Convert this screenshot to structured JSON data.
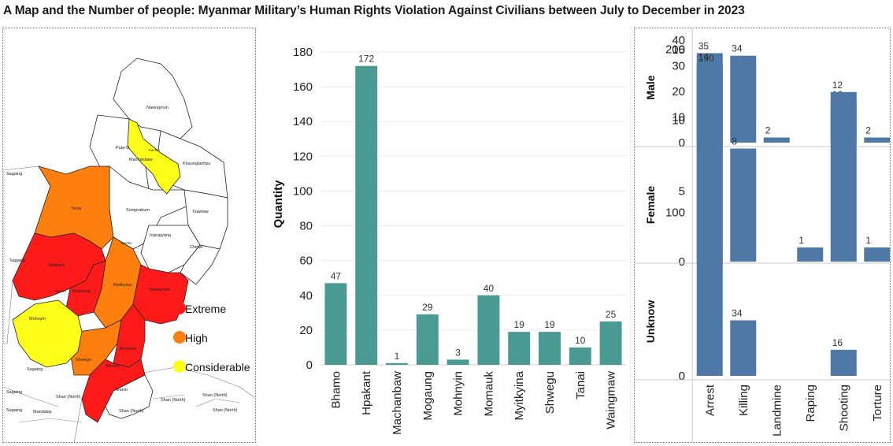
{
  "title": "A Map and the Number of people: Myanmar Military’s Human Rights Violation Against Civilians between July to December in 2023",
  "map": {
    "legend": [
      {
        "label": "Extreme",
        "color": "#ff1a1a"
      },
      {
        "label": "High",
        "color": "#ff7f0e"
      },
      {
        "label": "Considerable",
        "color": "#ffff1a"
      }
    ],
    "labels": {
      "nawngmun": "Nawngmun",
      "putao": "Puta-O",
      "kachin1": "Kachin",
      "machanbaw": "Machanbaw",
      "khaunglanhpu": "Khaunglanhpu",
      "sagaing1": "Sagaing",
      "tanai": "Tanai",
      "sumprabum": "Sumprabum",
      "tsawlaw": "Tsawlaw",
      "injangyang": "Injangyang",
      "kachin2": "Kachin",
      "chipwi": "Chipwi",
      "sagaing2": "Sagaing",
      "hpakant": "Hpakant",
      "myitkyina": "Myitkyina",
      "waingmaw": "Waingmaw",
      "kachin3": "Kachin",
      "mogaung": "Mogaung",
      "mohnyin": "Mohnyin",
      "momauk": "Momauk",
      "shwegu": "Shwegu",
      "bhamo": "Bhamo",
      "sagaing3": "Sagaing",
      "mansi": "Mansi",
      "sagaing4": "Sagaing",
      "shannorth1": "Shan (North)",
      "shannorth2": "Shan (North)",
      "sagaing5": "Sagaing",
      "mandalay": "Mandalay",
      "shannorth3": "Shan (North)",
      "shannorth4": "Shan (North)",
      "shannorth5": "Shan (North)"
    }
  },
  "chart_data": [
    {
      "type": "bar",
      "title": "",
      "xlabel": "",
      "ylabel": "Quantity",
      "categories": [
        "Bhamo",
        "Hpakant",
        "Machanbaw",
        "Mogaung",
        "Mohnyin",
        "Momauk",
        "Myitkyina",
        "Shwegu",
        "Tanai",
        "Waingmaw"
      ],
      "values": [
        47,
        172,
        1,
        29,
        3,
        40,
        19,
        19,
        10,
        25
      ],
      "ylim": [
        0,
        185
      ],
      "yticks": [
        0,
        20,
        40,
        60,
        80,
        100,
        120,
        140,
        160,
        180
      ],
      "grid": true,
      "color": "#4a9a94"
    },
    {
      "type": "bar",
      "title": "",
      "categories": [
        "Arrest",
        "Killing",
        "Landmine",
        "Raping",
        "Shooting",
        "Torture"
      ],
      "color": "#4e79a7",
      "panels": [
        {
          "label": "Male",
          "values": [
            35,
            34,
            2,
            0,
            16,
            2
          ],
          "show_labels": [
            true,
            true,
            true,
            false,
            true,
            true
          ],
          "ylim": [
            0,
            41
          ],
          "yticks": [
            0,
            10,
            20,
            30,
            40
          ]
        },
        {
          "label": "Female",
          "values": [
            14,
            8,
            0,
            1,
            12,
            1
          ],
          "show_labels": [
            true,
            true,
            false,
            true,
            true,
            true
          ],
          "ylim": [
            0,
            15.5
          ],
          "yticks": [
            0,
            5,
            10,
            15
          ]
        },
        {
          "label": "Unknow",
          "values": [
            190,
            34,
            0,
            0,
            16,
            0
          ],
          "show_labels": [
            true,
            true,
            false,
            false,
            true,
            false
          ],
          "ylim": [
            0,
            205
          ],
          "yticks": [
            0,
            100,
            200
          ]
        }
      ]
    }
  ]
}
